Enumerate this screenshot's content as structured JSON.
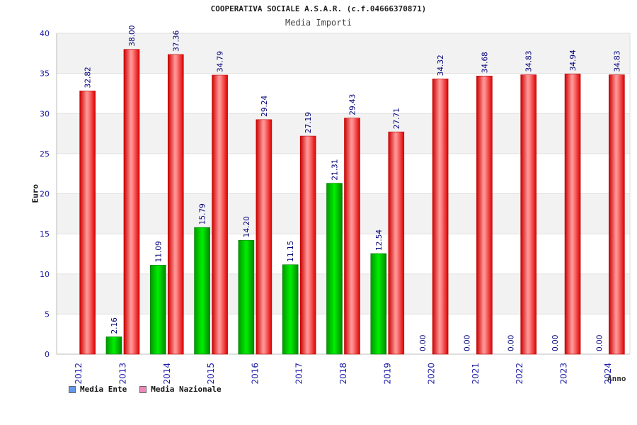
{
  "chart_data": {
    "type": "bar",
    "title": "COOPERATIVA SOCIALE A.S.A.R. (c.f.04666370871)",
    "subtitle": "Media Importi",
    "xlabel": "Anno",
    "ylabel": "Euro",
    "ylim": [
      0,
      40
    ],
    "yticks": [
      "0",
      "5",
      "10",
      "15",
      "20",
      "25",
      "30",
      "35",
      "40"
    ],
    "categories": [
      "2012",
      "2013",
      "2014",
      "2015",
      "2016",
      "2017",
      "2018",
      "2019",
      "2020",
      "2021",
      "2022",
      "2023",
      "2024"
    ],
    "series": [
      {
        "name": "Media Ente",
        "values": [
          null,
          2.16,
          11.09,
          15.79,
          14.2,
          11.15,
          21.31,
          12.54,
          0.0,
          0.0,
          0.0,
          0.0,
          0.0
        ],
        "labels": [
          "",
          "2.16",
          "11.09",
          "15.79",
          "14.20",
          "11.15",
          "21.31",
          "12.54",
          "0.00",
          "0.00",
          "0.00",
          "0.00",
          "0.00"
        ],
        "color": "#00bb00",
        "legend_color": "#6699ee"
      },
      {
        "name": "Media Nazionale",
        "values": [
          32.82,
          38.0,
          37.36,
          34.79,
          29.24,
          27.19,
          29.43,
          27.71,
          34.32,
          34.68,
          34.83,
          34.94,
          34.83
        ],
        "labels": [
          "32.82",
          "38.00",
          "37.36",
          "34.79",
          "29.24",
          "27.19",
          "29.43",
          "27.71",
          "34.32",
          "34.68",
          "34.83",
          "34.94",
          "34.83"
        ],
        "color": "#ee1111",
        "legend_color": "#ee88bb"
      }
    ],
    "grid": true,
    "legend_position": "bottom-left",
    "colors": {
      "tick_text": "#1a1aa8",
      "value_label": "#00007a",
      "band": "#f2f2f2"
    }
  }
}
